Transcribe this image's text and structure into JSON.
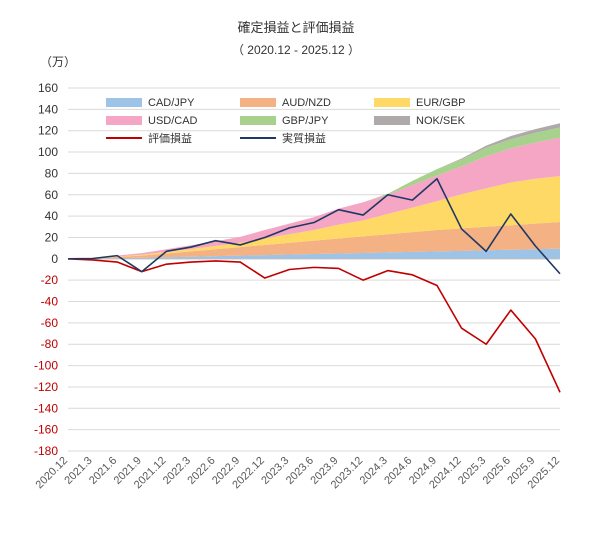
{
  "chart_data": {
    "type": "area",
    "title": "確定損益と評価損益",
    "subtitle": "（ 2020.12 - 2025.12 ）",
    "ylabel": "（万）",
    "ylim": [
      -180,
      160
    ],
    "yticks": [
      160,
      140,
      120,
      100,
      80,
      60,
      40,
      20,
      0,
      -20,
      -40,
      -60,
      -80,
      -100,
      -120,
      -140,
      -160,
      -180
    ],
    "categories": [
      "2020.12",
      "2021.3",
      "2021.6",
      "2021.9",
      "2021.12",
      "2022.3",
      "2022.6",
      "2022.9",
      "2022.12",
      "2023.3",
      "2023.6",
      "2023.9",
      "2023.12",
      "2024.3",
      "2024.6",
      "2024.9",
      "2024.12",
      "2025.3",
      "2025.6",
      "2025.9",
      "2025.12"
    ],
    "grid": true,
    "legend_position": "top",
    "colors": {
      "CAD/JPY": "#9DC3E6",
      "AUD/NZD": "#F4B183",
      "EUR/GBP": "#FFD966",
      "USD/CAD": "#F4A6C4",
      "GBP/JPY": "#A9D18E",
      "NOK/SEK": "#AEAAAA",
      "評価損益": "#C00000",
      "実質損益": "#203864",
      "axis_negative": "#C00000",
      "axis_positive": "#333333"
    },
    "stack_series": [
      {
        "name": "CAD/JPY",
        "values": [
          0,
          0.2,
          0.6,
          1,
          1.5,
          2,
          2.5,
          3,
          3.5,
          4,
          4.5,
          5,
          5.5,
          6,
          6.5,
          7,
          7.5,
          8,
          8.5,
          9,
          9.5
        ]
      },
      {
        "name": "AUD/NZD",
        "values": [
          0,
          0.3,
          1.2,
          2,
          3.5,
          5,
          6.5,
          8,
          9.5,
          11,
          12.5,
          14,
          15.5,
          17,
          18.5,
          20,
          21,
          22,
          23,
          24,
          25
        ]
      },
      {
        "name": "EUR/GBP",
        "values": [
          0,
          0.1,
          0.4,
          0.8,
          1.5,
          2.2,
          3,
          4,
          6,
          8,
          10,
          13,
          15,
          19,
          23,
          27,
          32,
          36,
          40,
          42,
          43
        ]
      },
      {
        "name": "USD/CAD",
        "values": [
          0,
          0.3,
          0.8,
          1.5,
          2.5,
          3.5,
          4.5,
          5.5,
          8,
          10,
          12,
          15,
          17,
          18,
          21,
          24,
          26,
          30,
          32,
          34,
          36
        ]
      },
      {
        "name": "GBP/JPY",
        "values": [
          0,
          0,
          0,
          0,
          0,
          0,
          0,
          0,
          0,
          0,
          0,
          0,
          0,
          1,
          4,
          6,
          6.5,
          8,
          8.5,
          9,
          9.5
        ]
      },
      {
        "name": "NOK/SEK",
        "values": [
          0,
          0,
          0,
          0,
          0,
          0,
          0,
          0,
          0,
          0,
          0,
          0,
          0,
          0,
          0,
          0,
          1,
          2,
          3,
          3.5,
          4
        ]
      }
    ],
    "line_series": [
      {
        "name": "評価損益",
        "values": [
          0,
          -1,
          -3,
          -12,
          -5,
          -3,
          -2,
          -3,
          -18,
          -10,
          -8,
          -9,
          -20,
          -11,
          -15,
          -25,
          -65,
          -80,
          -48,
          -75,
          -125
        ]
      },
      {
        "name": "実質損益",
        "values": [
          0,
          0.3,
          3,
          -12,
          7,
          11,
          17,
          13,
          20,
          29,
          34,
          46,
          41,
          60,
          55,
          75,
          28,
          7,
          42,
          12,
          -14
        ]
      }
    ]
  }
}
